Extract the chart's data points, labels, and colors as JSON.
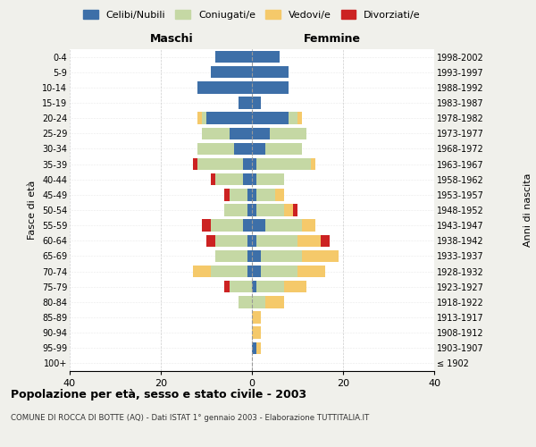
{
  "age_groups": [
    "100+",
    "95-99",
    "90-94",
    "85-89",
    "80-84",
    "75-79",
    "70-74",
    "65-69",
    "60-64",
    "55-59",
    "50-54",
    "45-49",
    "40-44",
    "35-39",
    "30-34",
    "25-29",
    "20-24",
    "15-19",
    "10-14",
    "5-9",
    "0-4"
  ],
  "birth_years": [
    "≤ 1902",
    "1903-1907",
    "1908-1912",
    "1913-1917",
    "1918-1922",
    "1923-1927",
    "1928-1932",
    "1933-1937",
    "1938-1942",
    "1943-1947",
    "1948-1952",
    "1953-1957",
    "1958-1962",
    "1963-1967",
    "1968-1972",
    "1973-1977",
    "1978-1982",
    "1983-1987",
    "1988-1992",
    "1993-1997",
    "1998-2002"
  ],
  "colors": {
    "celibi": "#3d6fa8",
    "coniugati": "#c5d8a4",
    "vedovi": "#f5c96a",
    "divorziati": "#cc2222"
  },
  "males": {
    "celibi": [
      0,
      0,
      0,
      0,
      0,
      0,
      1,
      1,
      1,
      2,
      1,
      1,
      2,
      2,
      4,
      5,
      10,
      3,
      12,
      9,
      8
    ],
    "coniugati": [
      0,
      0,
      0,
      0,
      3,
      5,
      8,
      7,
      7,
      7,
      5,
      4,
      6,
      10,
      8,
      6,
      1,
      0,
      0,
      0,
      0
    ],
    "vedovi": [
      0,
      0,
      0,
      0,
      0,
      0,
      4,
      0,
      0,
      0,
      0,
      0,
      0,
      0,
      0,
      0,
      1,
      0,
      0,
      0,
      0
    ],
    "divorziati": [
      0,
      0,
      0,
      0,
      0,
      1,
      0,
      0,
      2,
      2,
      0,
      1,
      1,
      1,
      0,
      0,
      0,
      0,
      0,
      0,
      0
    ]
  },
  "females": {
    "celibi": [
      0,
      1,
      0,
      0,
      0,
      1,
      2,
      2,
      1,
      3,
      1,
      1,
      1,
      1,
      3,
      4,
      8,
      2,
      8,
      8,
      6
    ],
    "coniugati": [
      0,
      0,
      0,
      0,
      3,
      6,
      8,
      9,
      9,
      8,
      6,
      4,
      6,
      12,
      8,
      8,
      2,
      0,
      0,
      0,
      0
    ],
    "vedovi": [
      0,
      1,
      2,
      2,
      4,
      5,
      6,
      8,
      5,
      3,
      2,
      2,
      0,
      1,
      0,
      0,
      1,
      0,
      0,
      0,
      0
    ],
    "divorziati": [
      0,
      0,
      0,
      0,
      0,
      0,
      0,
      0,
      2,
      0,
      1,
      0,
      0,
      0,
      0,
      0,
      0,
      0,
      0,
      0,
      0
    ]
  },
  "xlim": 40,
  "title": "Popolazione per età, sesso e stato civile - 2003",
  "subtitle": "COMUNE DI ROCCA DI BOTTE (AQ) - Dati ISTAT 1° gennaio 2003 - Elaborazione TUTTITALIA.IT",
  "ylabel_left": "Fasce di età",
  "ylabel_right": "Anni di nascita",
  "xlabel_left": "Maschi",
  "xlabel_right": "Femmine",
  "legend_labels": [
    "Celibi/Nubili",
    "Coniugati/e",
    "Vedovi/e",
    "Divorziati/e"
  ],
  "bg_color": "#f0f0eb",
  "plot_bg_color": "#ffffff"
}
